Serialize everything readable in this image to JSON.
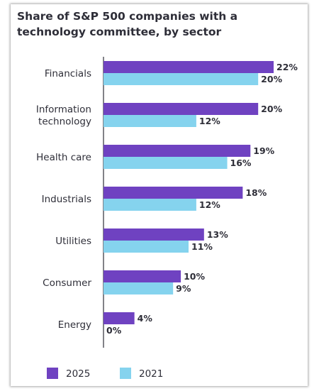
{
  "chart_data": {
    "type": "bar",
    "orientation": "horizontal",
    "title": "Share of S&P 500 companies with a technology committee, by sector",
    "categories": [
      [
        "Financials"
      ],
      [
        "Information",
        "technology"
      ],
      [
        "Health care"
      ],
      [
        "Industrials"
      ],
      [
        "Utilities"
      ],
      [
        "Consumer"
      ],
      [
        "Energy"
      ]
    ],
    "series": [
      {
        "name": "2025",
        "color": "#6f42c1",
        "values": [
          22,
          20,
          19,
          18,
          13,
          10,
          4
        ],
        "labels": [
          "22%",
          "20%",
          "19%",
          "18%",
          "13%",
          "10%",
          "4%"
        ]
      },
      {
        "name": "2021",
        "color": "#85d3ee",
        "values": [
          20,
          12,
          16,
          12,
          11,
          9,
          0
        ],
        "labels": [
          "20%",
          "12%",
          "16%",
          "12%",
          "11%",
          "9%",
          "0%"
        ]
      }
    ],
    "xlim": [
      0,
      22
    ],
    "grid": false,
    "legend_position": "bottom-left"
  }
}
